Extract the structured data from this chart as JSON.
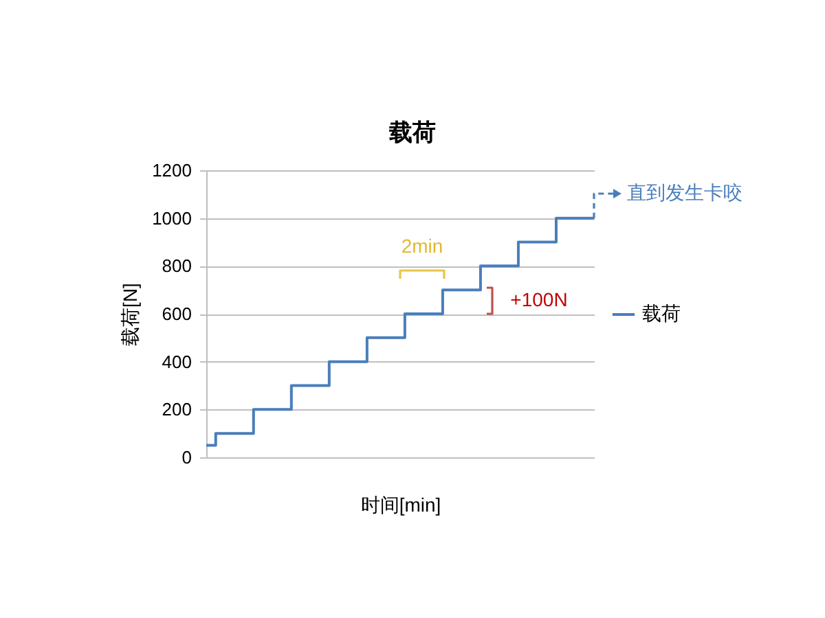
{
  "chart_data": {
    "type": "step",
    "title": "载荷",
    "xlabel": "时间[min]",
    "ylabel": "载荷[N]",
    "categories": [
      null,
      null,
      null,
      null,
      null,
      null,
      null,
      null,
      null,
      null,
      null,
      null,
      null,
      null,
      null,
      null,
      null,
      null,
      null,
      null,
      null,
      null,
      null,
      null,
      null,
      null,
      null,
      null,
      null,
      null,
      null,
      null,
      null,
      null,
      null,
      null,
      null,
      null,
      null,
      null,
      null,
      null
    ],
    "series": [
      {
        "name": "载荷",
        "color": "#4a7ebb",
        "values": [
          50,
          100,
          100,
          100,
          100,
          200,
          200,
          200,
          200,
          300,
          300,
          300,
          300,
          400,
          400,
          400,
          400,
          500,
          500,
          500,
          500,
          600,
          600,
          600,
          600,
          700,
          700,
          700,
          700,
          800,
          800,
          800,
          800,
          900,
          900,
          900,
          900,
          1000,
          1000,
          1000,
          1000,
          1000
        ]
      }
    ],
    "ylim": [
      0,
      1200
    ],
    "yticks": [
      0,
      200,
      400,
      600,
      800,
      1000,
      1200
    ],
    "grid": "y",
    "legend": "right",
    "tick_labels": "y",
    "line_style": "solid",
    "annotations": [
      "直到发生卡咬",
      "2min",
      "+100N"
    ]
  }
}
